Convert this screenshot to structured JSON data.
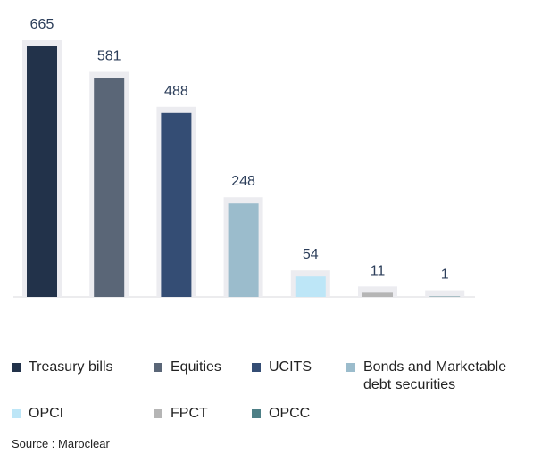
{
  "chart_data": {
    "type": "bar",
    "categories": [
      "Treasury bills",
      "Equities",
      "UCITS",
      "Bonds and Marketable debt securities",
      "OPCI",
      "FPCT",
      "OPCC"
    ],
    "values": [
      665,
      581,
      488,
      248,
      54,
      11,
      1
    ],
    "colors": [
      "#22324a",
      "#5a6677",
      "#344d74",
      "#9bbccc",
      "#bde6f7",
      "#b5b5b5",
      "#4d7f86"
    ],
    "source": "Source : Maroclear"
  }
}
